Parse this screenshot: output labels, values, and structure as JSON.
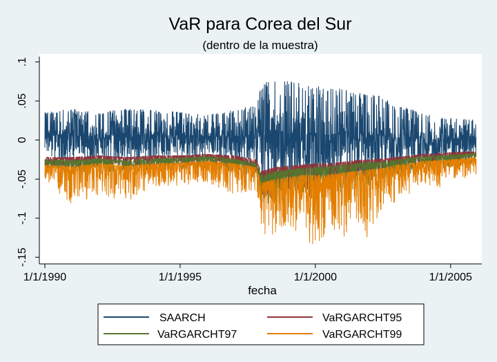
{
  "chart_data": {
    "type": "line",
    "title": "VaR para Corea del Sur",
    "subtitle": "(dentro de la muestra)",
    "xlabel": "fecha",
    "ylabel": "",
    "xlim": [
      1990.0,
      2006.0
    ],
    "ylim": [
      -0.155,
      0.105
    ],
    "x_ticks": [
      {
        "value": 1990,
        "label": "1/1/1990"
      },
      {
        "value": 1995,
        "label": "1/1/1995"
      },
      {
        "value": 2000,
        "label": "1/1/2000"
      },
      {
        "value": 2005,
        "label": "1/1/2005"
      }
    ],
    "y_ticks": [
      {
        "value": 0.1,
        "label": ".1"
      },
      {
        "value": 0.05,
        "label": ".05"
      },
      {
        "value": 0,
        "label": "0"
      },
      {
        "value": -0.05,
        "label": "-.05"
      },
      {
        "value": -0.1,
        "label": "-.1"
      },
      {
        "value": -0.15,
        "label": "-.15"
      }
    ],
    "grid": false,
    "legend_position": "bottom",
    "series": [
      {
        "name": "SAARCH",
        "color": "#1a476f",
        "envelope": {
          "x": [
            1990.0,
            1991.0,
            1992.0,
            1993.0,
            1994.0,
            1995.0,
            1996.0,
            1997.0,
            1997.8,
            1998.0,
            1998.5,
            1999.0,
            1999.5,
            2000.0,
            2000.5,
            2001.0,
            2001.5,
            2002.0,
            2002.5,
            2003.0,
            2003.5,
            2004.0,
            2004.5,
            2005.0,
            2005.5,
            2005.95
          ],
          "high": [
            0.035,
            0.04,
            0.035,
            0.04,
            0.038,
            0.036,
            0.032,
            0.038,
            0.045,
            0.07,
            0.08,
            0.075,
            0.072,
            0.07,
            0.068,
            0.065,
            0.062,
            0.06,
            0.055,
            0.045,
            0.04,
            0.035,
            0.03,
            0.028,
            0.028,
            0.025
          ],
          "low": [
            -0.02,
            -0.03,
            -0.025,
            -0.028,
            -0.025,
            -0.025,
            -0.022,
            -0.03,
            -0.035,
            -0.06,
            -0.065,
            -0.06,
            -0.055,
            -0.06,
            -0.055,
            -0.05,
            -0.05,
            -0.048,
            -0.045,
            -0.04,
            -0.035,
            -0.03,
            -0.03,
            -0.025,
            -0.025,
            -0.02
          ]
        }
      },
      {
        "name": "VaRGARCHT95",
        "color": "#90353b",
        "envelope": {
          "x": [
            1990.0,
            1991.0,
            1992.0,
            1993.0,
            1994.0,
            1995.0,
            1996.0,
            1997.0,
            1997.8,
            1998.0,
            1998.5,
            1999.0,
            1999.5,
            2000.0,
            2000.5,
            2001.0,
            2001.5,
            2002.0,
            2002.5,
            2003.0,
            2003.5,
            2004.0,
            2004.5,
            2005.0,
            2005.5,
            2005.95
          ],
          "high": [
            -0.022,
            -0.022,
            -0.02,
            -0.022,
            -0.02,
            -0.02,
            -0.018,
            -0.02,
            -0.025,
            -0.04,
            -0.035,
            -0.033,
            -0.032,
            -0.03,
            -0.03,
            -0.028,
            -0.026,
            -0.025,
            -0.024,
            -0.022,
            -0.02,
            -0.018,
            -0.017,
            -0.016,
            -0.015,
            -0.015
          ],
          "low": [
            -0.035,
            -0.04,
            -0.035,
            -0.038,
            -0.035,
            -0.034,
            -0.03,
            -0.04,
            -0.045,
            -0.07,
            -0.075,
            -0.065,
            -0.062,
            -0.068,
            -0.065,
            -0.06,
            -0.055,
            -0.052,
            -0.05,
            -0.045,
            -0.04,
            -0.035,
            -0.035,
            -0.03,
            -0.028,
            -0.025
          ]
        }
      },
      {
        "name": "VaRGARCHT97",
        "color": "#55752f",
        "envelope": {
          "x": [
            1990.0,
            1991.0,
            1992.0,
            1993.0,
            1994.0,
            1995.0,
            1996.0,
            1997.0,
            1997.8,
            1998.0,
            1998.5,
            1999.0,
            1999.5,
            2000.0,
            2000.5,
            2001.0,
            2001.5,
            2002.0,
            2002.5,
            2003.0,
            2003.5,
            2004.0,
            2004.5,
            2005.0,
            2005.5,
            2005.95
          ],
          "high": [
            -0.025,
            -0.026,
            -0.024,
            -0.026,
            -0.024,
            -0.023,
            -0.021,
            -0.024,
            -0.03,
            -0.045,
            -0.04,
            -0.038,
            -0.036,
            -0.035,
            -0.034,
            -0.032,
            -0.03,
            -0.029,
            -0.028,
            -0.025,
            -0.023,
            -0.021,
            -0.02,
            -0.019,
            -0.018,
            -0.017
          ],
          "low": [
            -0.04,
            -0.045,
            -0.04,
            -0.044,
            -0.04,
            -0.039,
            -0.035,
            -0.045,
            -0.05,
            -0.08,
            -0.085,
            -0.075,
            -0.07,
            -0.078,
            -0.075,
            -0.068,
            -0.062,
            -0.06,
            -0.057,
            -0.05,
            -0.045,
            -0.04,
            -0.04,
            -0.035,
            -0.032,
            -0.028
          ]
        }
      },
      {
        "name": "VaRGARCHT99",
        "color": "#e37e00",
        "envelope": {
          "x": [
            1990.0,
            1991.0,
            1992.0,
            1993.0,
            1994.0,
            1995.0,
            1996.0,
            1997.0,
            1997.8,
            1998.0,
            1998.5,
            1999.0,
            1999.5,
            2000.0,
            2000.5,
            2001.0,
            2001.5,
            2002.0,
            2002.5,
            2003.0,
            2003.5,
            2004.0,
            2004.5,
            2005.0,
            2005.5,
            2005.95
          ],
          "high": [
            -0.032,
            -0.034,
            -0.03,
            -0.033,
            -0.03,
            -0.029,
            -0.027,
            -0.03,
            -0.035,
            -0.055,
            -0.05,
            -0.048,
            -0.045,
            -0.045,
            -0.044,
            -0.042,
            -0.04,
            -0.038,
            -0.036,
            -0.032,
            -0.03,
            -0.027,
            -0.026,
            -0.025,
            -0.024,
            -0.022
          ],
          "low": [
            -0.05,
            -0.085,
            -0.07,
            -0.08,
            -0.06,
            -0.058,
            -0.055,
            -0.07,
            -0.065,
            -0.13,
            -0.12,
            -0.11,
            -0.125,
            -0.138,
            -0.12,
            -0.13,
            -0.1,
            -0.132,
            -0.09,
            -0.08,
            -0.07,
            -0.06,
            -0.065,
            -0.05,
            -0.05,
            -0.045
          ]
        }
      }
    ]
  }
}
